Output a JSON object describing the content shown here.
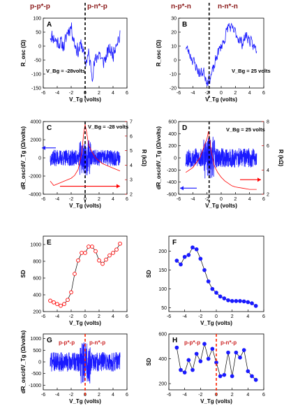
{
  "headers": [
    {
      "text": "p-p*-p"
    },
    {
      "text": "p-n*-p"
    },
    {
      "text": "n-p*-n"
    },
    {
      "text": "n-n*-n"
    }
  ],
  "chart_data": [
    {
      "id": "A",
      "type": "line",
      "panel_label": "A",
      "xlim": [
        -6,
        6
      ],
      "ylim": [
        -150,
        100
      ],
      "xticks": [
        -6,
        -4,
        -2,
        0,
        2,
        4,
        6
      ],
      "yticks": [
        -150,
        -100,
        -50,
        0,
        50,
        100
      ],
      "xlabel": "V_Tg (volts)",
      "ylabel": "R_osc (Ω)",
      "annotation": "V_Bg = -28volts",
      "dashed_x": 0,
      "dashed_color": "#000000",
      "series": [
        {
          "color": "#1a1aff",
          "x_start": -5,
          "x_end": 5,
          "step": 0.05,
          "seed": 11,
          "amp": 40,
          "x": [
            -5,
            -4.5,
            -4,
            -3.5,
            -3,
            -2.5,
            -2,
            -1.5,
            -1,
            -0.5,
            0,
            0.5,
            1,
            1.5,
            2,
            2.5,
            3,
            3.5,
            4,
            4.5,
            5
          ],
          "y": [
            40,
            30,
            15,
            10,
            0,
            55,
            70,
            10,
            -20,
            10,
            -60,
            -30,
            -100,
            -50,
            -20,
            -60,
            -40,
            -10,
            -30,
            20,
            30
          ]
        }
      ]
    },
    {
      "id": "B",
      "type": "line",
      "panel_label": "B",
      "xlim": [
        -6,
        6
      ],
      "ylim": [
        -20,
        30
      ],
      "xticks": [
        -6,
        -4,
        -2,
        0,
        2,
        4,
        6
      ],
      "yticks": [
        -20,
        -10,
        0,
        10,
        20,
        30
      ],
      "xlabel": "V_Tg (volts)",
      "ylabel": "R_osc (Ω)",
      "annotation": "V_Bg = 25 volts",
      "dashed_x": -1.7,
      "dashed_color": "#000000",
      "series": [
        {
          "color": "#1a1aff",
          "x_start": -5,
          "x_end": 5,
          "step": 0.05,
          "seed": 23,
          "amp": 6,
          "x": [
            -5,
            -4.5,
            -4,
            -3.5,
            -3,
            -2.5,
            -2,
            -1.5,
            -1,
            -0.5,
            0,
            0.5,
            1,
            1.5,
            2,
            2.5,
            3,
            3.5,
            4,
            4.5,
            5
          ],
          "y": [
            10,
            5,
            0,
            -5,
            -10,
            -8,
            -15,
            -12,
            -5,
            5,
            10,
            15,
            25,
            22,
            20,
            15,
            12,
            18,
            14,
            10,
            8
          ]
        }
      ]
    },
    {
      "id": "C",
      "type": "line",
      "panel_label": "C",
      "xlim": [
        -6,
        6
      ],
      "ylim": [
        -4000,
        4000
      ],
      "y2lim": [
        2,
        7
      ],
      "xticks": [
        -6,
        -4,
        -2,
        0,
        2,
        4,
        6
      ],
      "yticks": [
        -4000,
        -2000,
        0,
        2000,
        4000
      ],
      "y2ticks": [
        2,
        3,
        4,
        5,
        6,
        7
      ],
      "xlabel": "V_Tg (volts)",
      "ylabel": "dR_osc/dV_Tg (Ω/volts)",
      "y2label": "R (kΩ)",
      "annotation": "V_Bg = -28 volts",
      "dashed_x": 0,
      "dashed_color": "#000000",
      "series": [
        {
          "color": "#1a1aff",
          "axis": "left",
          "x_start": -5,
          "x_end": 5,
          "step": 0.02,
          "seed": 37,
          "amp": 900,
          "x": [
            -5,
            0,
            5
          ],
          "y": [
            0,
            0,
            0
          ]
        },
        {
          "color": "#ff0000",
          "axis": "right",
          "x": [
            -5,
            -4.5,
            -4,
            -3.5,
            -3,
            -2.5,
            -2,
            -1.5,
            -1,
            -0.5,
            -0.2,
            0,
            0.2,
            0.5,
            1,
            1.5,
            2,
            2.5,
            3,
            3.5,
            4,
            4.5,
            5
          ],
          "y": [
            2.9,
            2.6,
            2.7,
            2.8,
            2.9,
            3.0,
            3.1,
            3.3,
            3.7,
            4.8,
            6.2,
            6.8,
            6.3,
            5.4,
            4.9,
            4.5,
            4.3,
            4.1,
            4.0,
            3.9,
            3.8,
            3.7,
            3.6
          ]
        }
      ]
    },
    {
      "id": "D",
      "type": "line",
      "panel_label": "D",
      "xlim": [
        -6,
        6
      ],
      "ylim": [
        -600,
        600
      ],
      "y2lim": [
        2,
        8
      ],
      "xticks": [
        -6,
        -4,
        -2,
        0,
        2,
        4,
        6
      ],
      "yticks": [
        -600,
        -400,
        -200,
        0,
        200,
        400,
        600
      ],
      "y2ticks": [
        2,
        4,
        6,
        8
      ],
      "xlabel": "V_Tg (volts)",
      "ylabel": "dR_osc/dV_Tg (Ω/volts)",
      "y2label": "R (kΩ)",
      "annotation": "V_Bg = 25 volts",
      "dashed_x": -1.7,
      "dashed_color": "#000000",
      "series": [
        {
          "color": "#1a1aff",
          "axis": "left",
          "x_start": -5,
          "x_end": 5,
          "step": 0.02,
          "seed": 53,
          "amp": 160,
          "x": [
            -5,
            0,
            5
          ],
          "y": [
            0,
            0,
            0
          ]
        },
        {
          "color": "#ff0000",
          "axis": "right",
          "x": [
            -5,
            -4,
            -3,
            -2.5,
            -2,
            -1.8,
            -1.6,
            -1.4,
            -1,
            -0.5,
            0,
            0.5,
            1,
            1.5,
            2,
            3,
            4,
            5
          ],
          "y": [
            3.8,
            4.2,
            5.0,
            5.8,
            6.6,
            7.2,
            6.5,
            5.5,
            4.4,
            3.8,
            3.4,
            3.1,
            2.9,
            2.7,
            2.6,
            2.5,
            2.4,
            2.4
          ]
        }
      ]
    },
    {
      "id": "E",
      "type": "line",
      "panel_label": "E",
      "xlim": [
        -6,
        6
      ],
      "ylim": [
        200,
        1100
      ],
      "xticks": [
        -6,
        -4,
        -2,
        0,
        2,
        4,
        6
      ],
      "yticks": [
        200,
        400,
        600,
        800,
        1000
      ],
      "xlabel": "V_Tg (volts)",
      "ylabel": "SD",
      "series": [
        {
          "color": "#ff0000",
          "marker": "open-circle",
          "x": [
            -5,
            -4.5,
            -4,
            -3.5,
            -3,
            -2.5,
            -2,
            -1.5,
            -1,
            -0.5,
            0,
            0.5,
            1,
            1.5,
            2,
            2.5,
            3,
            3.5,
            4,
            4.5,
            5
          ],
          "y": [
            330,
            310,
            290,
            270,
            290,
            340,
            430,
            650,
            810,
            900,
            900,
            975,
            975,
            920,
            810,
            770,
            820,
            870,
            900,
            940,
            1010
          ]
        }
      ]
    },
    {
      "id": "F",
      "type": "line",
      "panel_label": "F",
      "xlim": [
        -6,
        6
      ],
      "ylim": [
        40,
        240
      ],
      "xticks": [
        -6,
        -4,
        -2,
        0,
        2,
        4,
        6
      ],
      "yticks": [
        50,
        100,
        150,
        200
      ],
      "xlabel": "V_Tg (volts)",
      "ylabel": "SD",
      "series": [
        {
          "color": "#1a1aff",
          "marker": "filled-circle",
          "x": [
            -5,
            -4.5,
            -4,
            -3.5,
            -3,
            -2.5,
            -2,
            -1.5,
            -1,
            -0.5,
            0,
            0.5,
            1,
            1.5,
            2,
            2.5,
            3,
            3.5,
            4,
            4.5,
            5
          ],
          "y": [
            175,
            165,
            185,
            190,
            210,
            205,
            180,
            150,
            120,
            100,
            90,
            80,
            75,
            70,
            68,
            68,
            68,
            67,
            65,
            62,
            55
          ]
        }
      ]
    },
    {
      "id": "G",
      "type": "line",
      "panel_label": "G",
      "xlim": [
        -6,
        6
      ],
      "ylim": [
        -1200,
        1200
      ],
      "xticks": [
        -6,
        -4,
        -2,
        0,
        2,
        4,
        6
      ],
      "yticks": [
        -1000,
        -500,
        0,
        500,
        1000
      ],
      "xlabel": "V_Tg (volts)",
      "ylabel": "dR_osc/dV_Tg (Ω/volts)",
      "annotation_left": "p-p*-p",
      "annotation_right": "p-n*-p",
      "dashed_x": 0,
      "dashed_color": "#ff2200",
      "series": [
        {
          "color": "#1a1aff",
          "x_start": -5,
          "x_end": 5,
          "step": 0.02,
          "seed": 71,
          "amp": 420,
          "x": [
            -5,
            0,
            5
          ],
          "y": [
            0,
            0,
            0
          ]
        }
      ]
    },
    {
      "id": "H",
      "type": "line",
      "panel_label": "H",
      "xlim": [
        -6,
        6
      ],
      "ylim": [
        150,
        600
      ],
      "xticks": [
        -6,
        -4,
        -2,
        0,
        2,
        4,
        6
      ],
      "yticks": [
        200,
        400,
        600
      ],
      "xlabel": "V_Tg (volts)",
      "ylabel": "SD",
      "annotation_left": "p-p*-p",
      "annotation_right": "p-n*-p",
      "dashed_x": 0,
      "dashed_color": "#ff2200",
      "series": [
        {
          "color": "#1a1aff",
          "marker": "filled-circle",
          "x": [
            -5,
            -4.5,
            -4,
            -3.5,
            -3,
            -2.5,
            -2,
            -1.5,
            -1,
            -0.5,
            0,
            0.5,
            1,
            1.5,
            2,
            2.5,
            3,
            3.5,
            4,
            4.5,
            5
          ],
          "y": [
            490,
            310,
            290,
            390,
            310,
            440,
            380,
            520,
            400,
            480,
            370,
            260,
            270,
            450,
            260,
            450,
            410,
            470,
            300,
            260,
            230
          ]
        }
      ]
    }
  ]
}
